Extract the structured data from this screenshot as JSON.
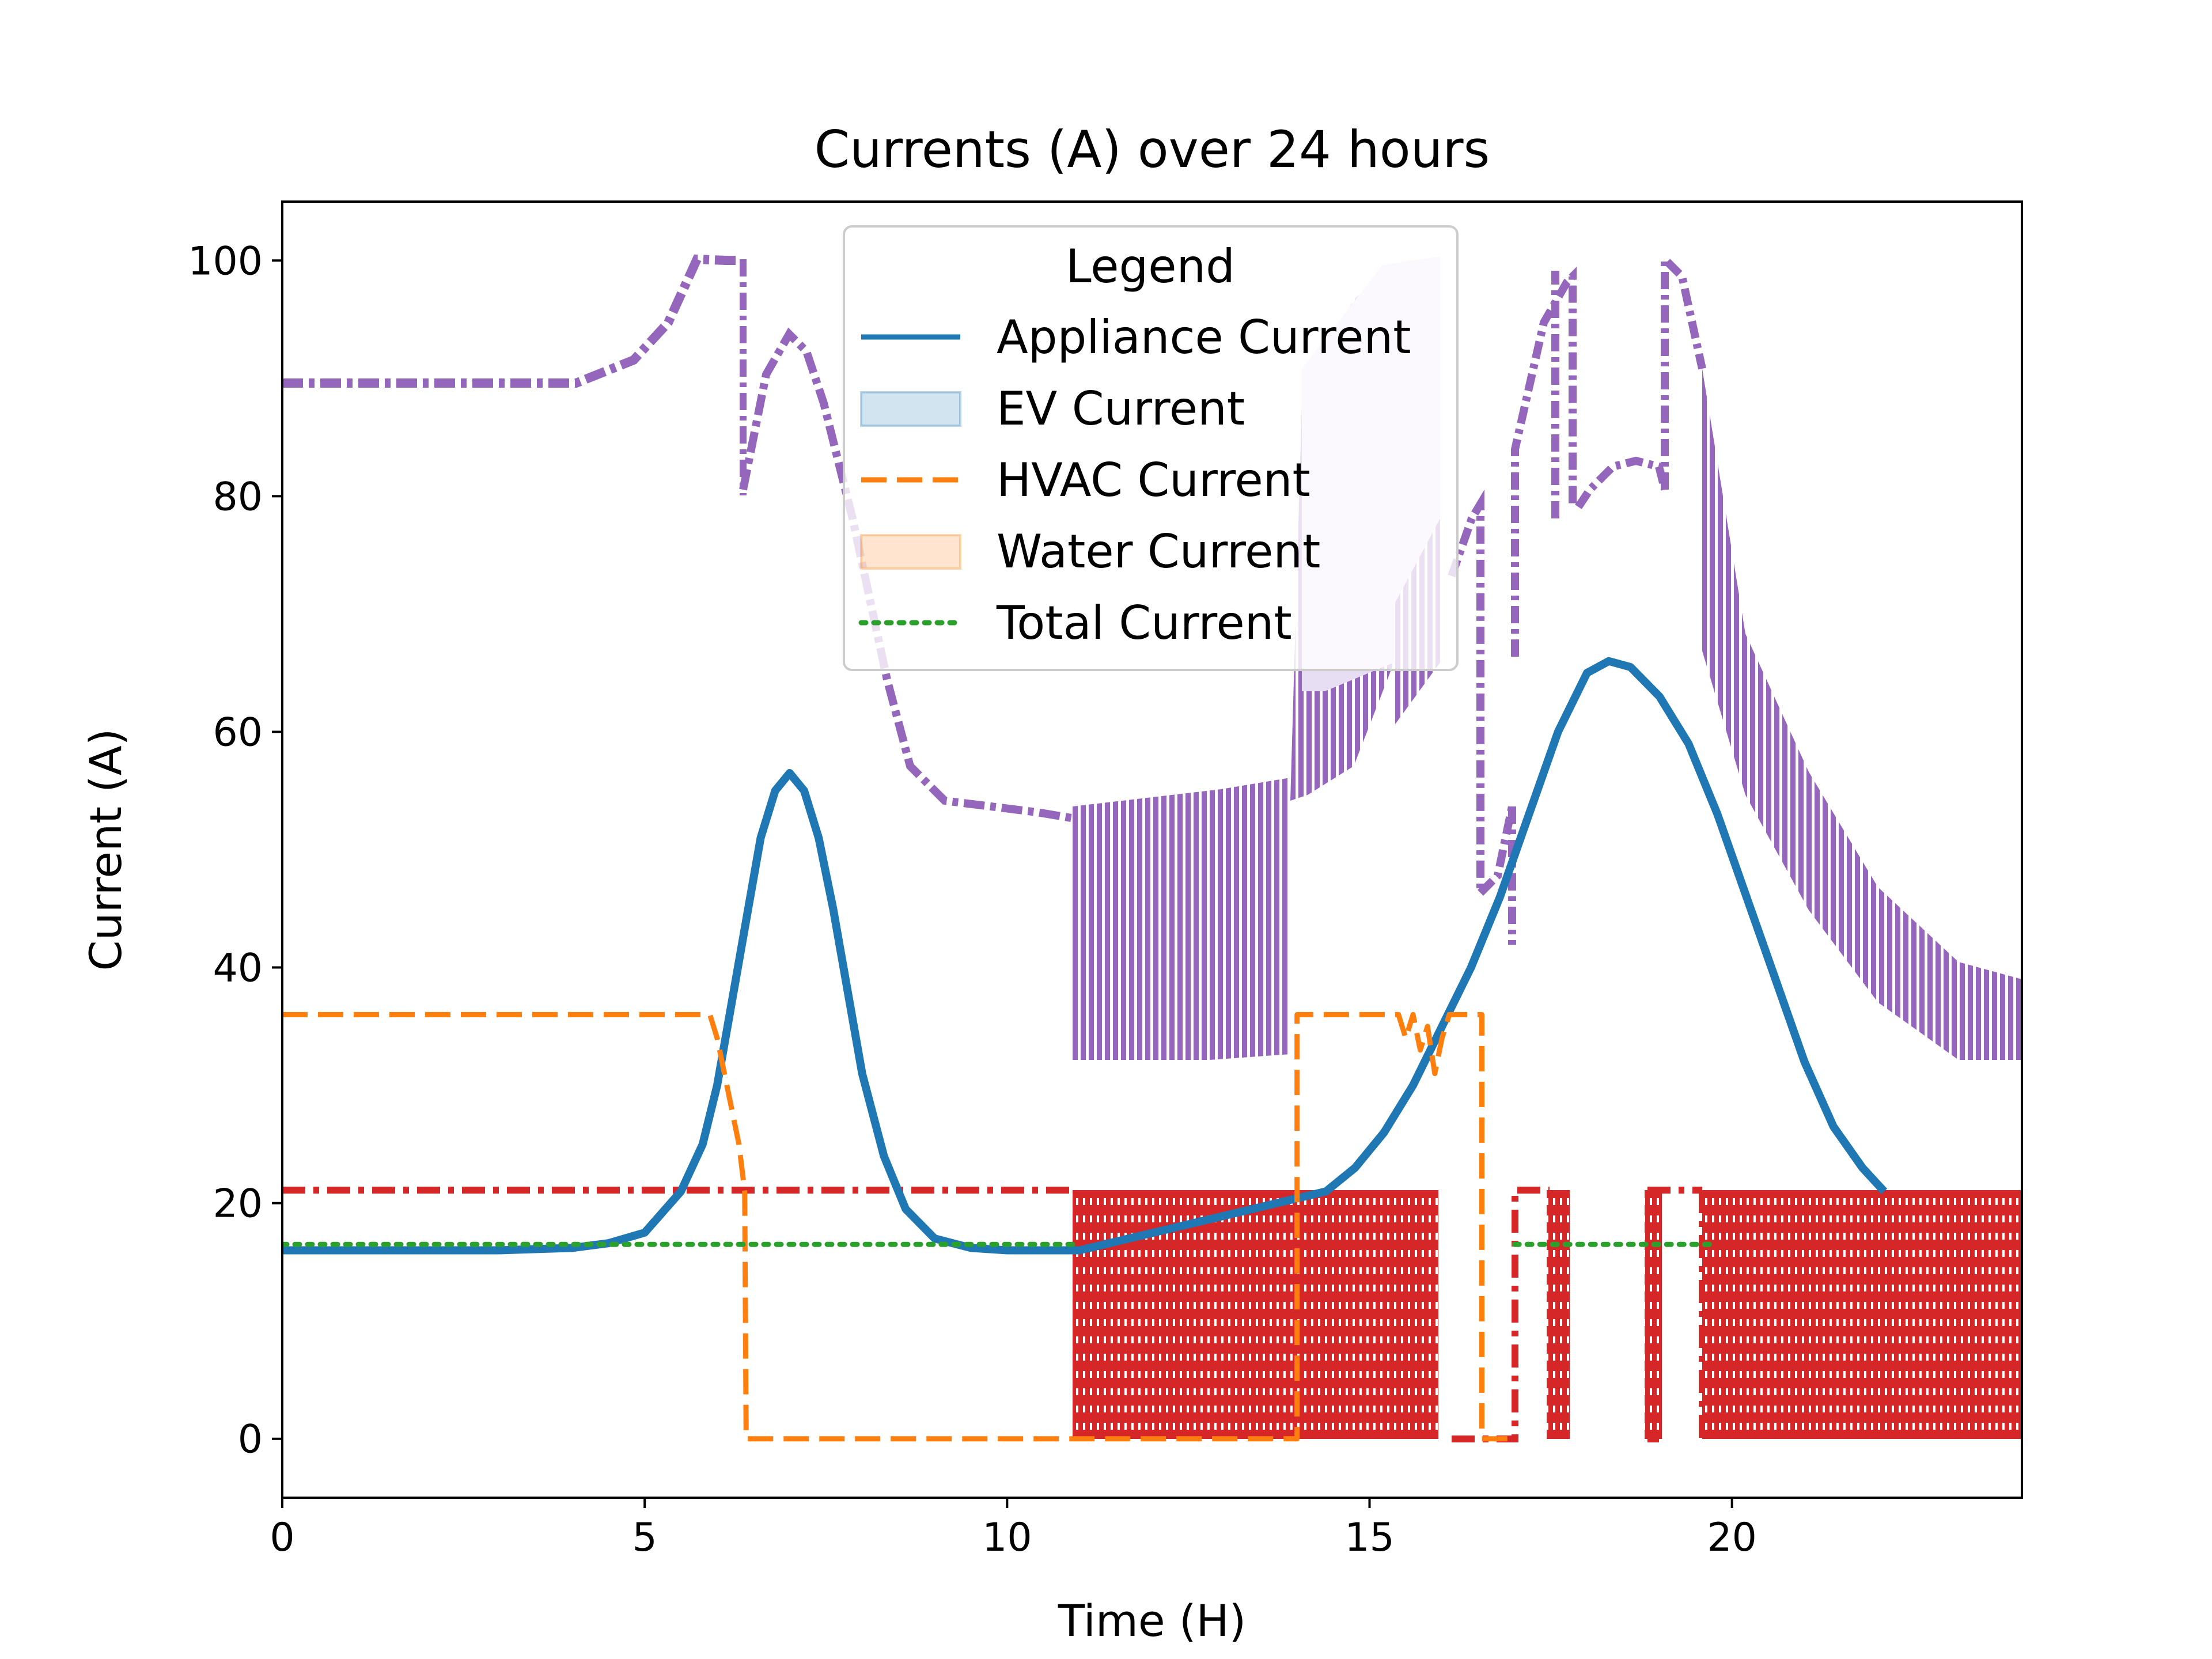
{
  "chart_data": {
    "type": "line",
    "title": "Currents (A) over 24 hours",
    "xlabel": "Time (H)",
    "ylabel": "Current (A)",
    "xlim": [
      0,
      24
    ],
    "ylim": [
      -5,
      105
    ],
    "xticks": [
      0,
      5,
      10,
      15,
      20
    ],
    "yticks": [
      0,
      20,
      40,
      60,
      80,
      100
    ],
    "grid": false,
    "legend": {
      "title": "Legend",
      "placement": "top-center",
      "entries": [
        {
          "label": "Appliance Current",
          "style": "line-solid",
          "color": "#1f77b4"
        },
        {
          "label": "EV Current",
          "style": "patch",
          "color": "#1f77b4"
        },
        {
          "label": "HVAC Current",
          "style": "line-dashed",
          "color": "#ff7f0e"
        },
        {
          "label": "Water Current",
          "style": "patch",
          "color": "#ff7f0e"
        },
        {
          "label": "Total Current",
          "style": "line-dotted",
          "color": "#2ca02c"
        }
      ]
    },
    "series": [
      {
        "name": "Appliance Current",
        "color": "#1f77b4",
        "style": "solid",
        "x": [
          0,
          1,
          2,
          3,
          4,
          4.5,
          5,
          5.5,
          5.8,
          6,
          6.2,
          6.4,
          6.6,
          6.8,
          7.0,
          7.2,
          7.4,
          7.6,
          7.8,
          8.0,
          8.3,
          8.6,
          9.0,
          9.5,
          10,
          10.5,
          11,
          14.4,
          14.8,
          15.2,
          15.6,
          16.0,
          16.4,
          16.8,
          17.2,
          17.6,
          18.0,
          18.3,
          18.6,
          19.0,
          19.4,
          19.8,
          20.2,
          20.6,
          21.0,
          21.4,
          21.8,
          22.1
        ],
        "y": [
          16,
          16,
          16,
          16,
          16.2,
          16.6,
          17.5,
          21,
          25,
          30,
          37,
          44,
          51,
          55,
          56.5,
          55,
          51,
          45,
          38,
          31,
          24,
          19.5,
          17,
          16.2,
          16,
          16,
          16,
          21,
          23,
          26,
          30,
          35,
          40,
          46,
          53,
          60,
          65,
          66,
          65.5,
          63,
          59,
          53,
          46,
          39,
          32,
          26.5,
          23,
          21
        ]
      },
      {
        "name": "HVAC Current",
        "color": "#ff7f0e",
        "style": "dashed",
        "x": [
          0,
          5.9,
          6.0,
          6.1,
          6.2,
          6.3,
          6.38,
          6.4,
          11,
          14.0,
          14.0,
          15.4,
          15.5,
          15.6,
          15.7,
          15.8,
          15.9,
          16.0,
          16.1,
          16.55,
          16.55,
          17.0
        ],
        "y": [
          36,
          36,
          34,
          31,
          28,
          25,
          21,
          0,
          0,
          0,
          36,
          36,
          34,
          36,
          33,
          35,
          31,
          34,
          36,
          36,
          0,
          0
        ]
      },
      {
        "name": "Total Current",
        "color": "#2ca02c",
        "style": "dotted",
        "x": [
          0,
          11,
          11,
          17.0,
          17.0,
          19.7
        ],
        "y": [
          16.5,
          16.5,
          null,
          null,
          16.5,
          16.5
        ]
      }
    ]
  }
}
